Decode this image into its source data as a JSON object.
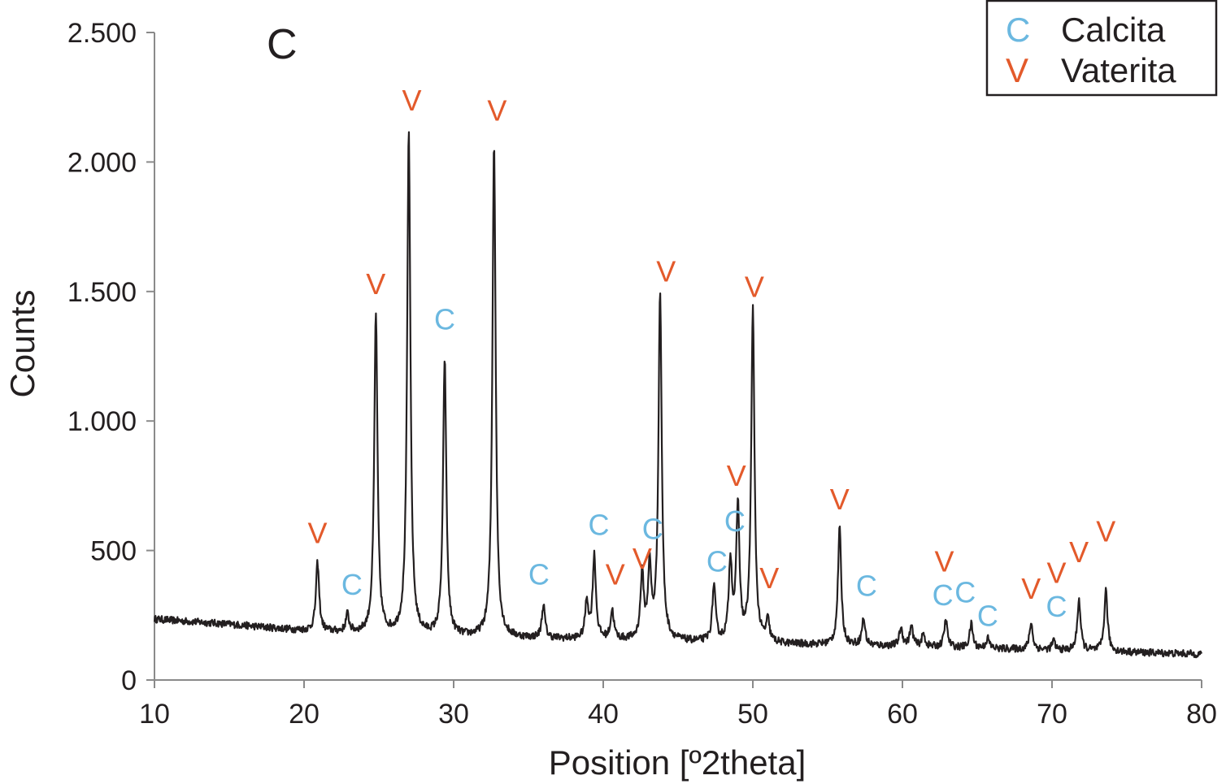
{
  "chart_data": {
    "type": "line",
    "panel_label": "C",
    "xlabel": "Position [º2theta]",
    "ylabel": "Counts",
    "xlim": [
      10,
      80
    ],
    "ylim": [
      0,
      2500
    ],
    "x_ticks": [
      10,
      20,
      30,
      40,
      50,
      60,
      70,
      80
    ],
    "x_tick_labels": [
      "10",
      "20",
      "30",
      "40",
      "50",
      "60",
      "70",
      "80"
    ],
    "y_ticks": [
      0,
      500,
      1000,
      1500,
      2000,
      2500
    ],
    "y_tick_labels": [
      "0",
      "500",
      "1.000",
      "1.500",
      "2.000",
      "2.500"
    ],
    "grid": false,
    "legend": {
      "placement": "top-right",
      "entries": [
        {
          "marker": "C",
          "name": "Calcita",
          "color": "#6bb8e0"
        },
        {
          "marker": "V",
          "name": "Vaterita",
          "color": "#e35a2b"
        }
      ]
    },
    "series": [
      {
        "color": "#231f20",
        "baseline": [
          [
            10,
            235
          ],
          [
            15,
            215
          ],
          [
            20,
            190
          ],
          [
            25,
            175
          ],
          [
            30,
            165
          ],
          [
            40,
            155
          ],
          [
            50,
            140
          ],
          [
            60,
            130
          ],
          [
            70,
            115
          ],
          [
            80,
            100
          ]
        ],
        "peaks": [
          {
            "x": 20.9,
            "y": 450
          },
          {
            "x": 22.9,
            "y": 250
          },
          {
            "x": 24.8,
            "y": 1415
          },
          {
            "x": 27.0,
            "y": 2115
          },
          {
            "x": 29.4,
            "y": 1235
          },
          {
            "x": 32.7,
            "y": 2075
          },
          {
            "x": 36.0,
            "y": 285
          },
          {
            "x": 38.9,
            "y": 300
          },
          {
            "x": 39.4,
            "y": 475
          },
          {
            "x": 40.6,
            "y": 265
          },
          {
            "x": 42.6,
            "y": 400
          },
          {
            "x": 43.1,
            "y": 420
          },
          {
            "x": 43.8,
            "y": 1495
          },
          {
            "x": 47.4,
            "y": 360
          },
          {
            "x": 48.5,
            "y": 450
          },
          {
            "x": 49.0,
            "y": 660
          },
          {
            "x": 50.0,
            "y": 1425
          },
          {
            "x": 51.0,
            "y": 220
          },
          {
            "x": 55.8,
            "y": 585
          },
          {
            "x": 57.4,
            "y": 235
          },
          {
            "x": 59.9,
            "y": 200
          },
          {
            "x": 60.6,
            "y": 205
          },
          {
            "x": 61.4,
            "y": 175
          },
          {
            "x": 62.9,
            "y": 230
          },
          {
            "x": 64.6,
            "y": 215
          },
          {
            "x": 65.7,
            "y": 160
          },
          {
            "x": 68.6,
            "y": 220
          },
          {
            "x": 70.1,
            "y": 150
          },
          {
            "x": 71.8,
            "y": 310
          },
          {
            "x": 73.6,
            "y": 345
          }
        ]
      }
    ],
    "annotations": [
      {
        "text": "V",
        "phase": "vaterita",
        "x": 20.9,
        "y": 570
      },
      {
        "text": "C",
        "phase": "calcita",
        "x": 23.2,
        "y": 370
      },
      {
        "text": "V",
        "phase": "vaterita",
        "x": 24.8,
        "y": 1530
      },
      {
        "text": "V",
        "phase": "vaterita",
        "x": 27.2,
        "y": 2240
      },
      {
        "text": "C",
        "phase": "calcita",
        "x": 29.4,
        "y": 1395
      },
      {
        "text": "V",
        "phase": "vaterita",
        "x": 32.9,
        "y": 2200
      },
      {
        "text": "C",
        "phase": "calcita",
        "x": 35.7,
        "y": 410
      },
      {
        "text": "C",
        "phase": "calcita",
        "x": 39.7,
        "y": 600
      },
      {
        "text": "V",
        "phase": "vaterita",
        "x": 40.8,
        "y": 410
      },
      {
        "text": "V",
        "phase": "vaterita",
        "x": 42.6,
        "y": 470
      },
      {
        "text": "C",
        "phase": "calcita",
        "x": 43.3,
        "y": 585
      },
      {
        "text": "V",
        "phase": "vaterita",
        "x": 44.2,
        "y": 1580
      },
      {
        "text": "C",
        "phase": "calcita",
        "x": 47.6,
        "y": 460
      },
      {
        "text": "C",
        "phase": "calcita",
        "x": 48.8,
        "y": 615
      },
      {
        "text": "V",
        "phase": "vaterita",
        "x": 48.9,
        "y": 790
      },
      {
        "text": "V",
        "phase": "vaterita",
        "x": 50.1,
        "y": 1520
      },
      {
        "text": "V",
        "phase": "vaterita",
        "x": 51.1,
        "y": 395
      },
      {
        "text": "V",
        "phase": "vaterita",
        "x": 55.8,
        "y": 700
      },
      {
        "text": "C",
        "phase": "calcita",
        "x": 57.6,
        "y": 365
      },
      {
        "text": "V",
        "phase": "vaterita",
        "x": 62.8,
        "y": 460
      },
      {
        "text": "C",
        "phase": "calcita",
        "x": 62.7,
        "y": 330
      },
      {
        "text": "C",
        "phase": "calcita",
        "x": 64.2,
        "y": 340
      },
      {
        "text": "C",
        "phase": "calcita",
        "x": 65.7,
        "y": 250
      },
      {
        "text": "V",
        "phase": "vaterita",
        "x": 68.6,
        "y": 355
      },
      {
        "text": "C",
        "phase": "calcita",
        "x": 70.3,
        "y": 285
      },
      {
        "text": "V",
        "phase": "vaterita",
        "x": 70.3,
        "y": 415
      },
      {
        "text": "V",
        "phase": "vaterita",
        "x": 71.8,
        "y": 495
      },
      {
        "text": "V",
        "phase": "vaterita",
        "x": 73.6,
        "y": 575
      }
    ]
  }
}
